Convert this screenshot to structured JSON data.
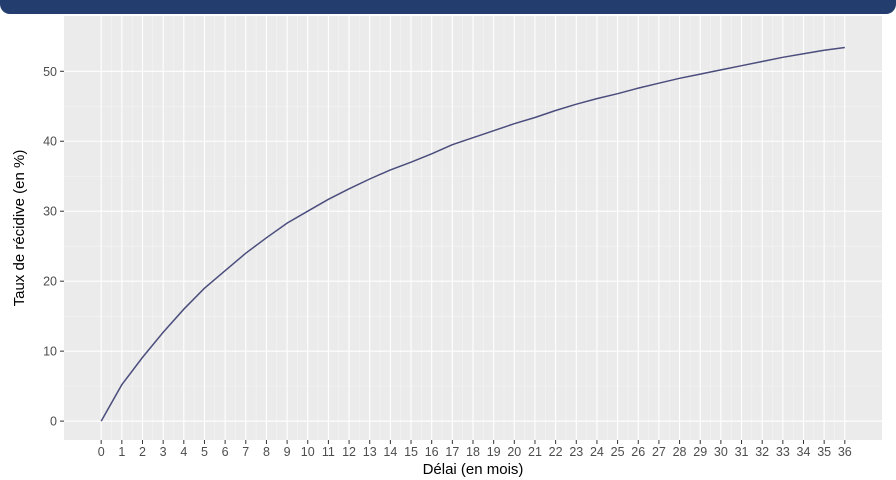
{
  "colors": {
    "panel_bg": "#ebebeb",
    "grid_major": "#ffffff",
    "grid_minor": "#f5f5f5",
    "line": "#4b4d7d",
    "tick_text": "#4d4d4d",
    "top_bar": "#223d6e"
  },
  "chart_data": {
    "type": "line",
    "xlabel": "Délai (en mois)",
    "ylabel": "Taux de récidive (en %)",
    "xlim": [
      -1.8,
      37.8
    ],
    "ylim": [
      -2.7,
      57.9
    ],
    "x_ticks": [
      0,
      1,
      2,
      3,
      4,
      5,
      6,
      7,
      8,
      9,
      10,
      11,
      12,
      13,
      14,
      15,
      16,
      17,
      18,
      19,
      20,
      21,
      22,
      23,
      24,
      25,
      26,
      27,
      28,
      29,
      30,
      31,
      32,
      33,
      34,
      35,
      36
    ],
    "y_ticks": [
      0,
      10,
      20,
      30,
      40,
      50
    ],
    "grid": true,
    "x": [
      0,
      1,
      2,
      3,
      4,
      5,
      6,
      7,
      8,
      9,
      10,
      11,
      12,
      13,
      14,
      15,
      16,
      17,
      18,
      19,
      20,
      21,
      22,
      23,
      24,
      25,
      26,
      27,
      28,
      29,
      30,
      31,
      32,
      33,
      34,
      35,
      36
    ],
    "values": [
      0,
      5.2,
      9.1,
      12.7,
      16.0,
      19.0,
      21.5,
      24.0,
      26.2,
      28.3,
      30.0,
      31.7,
      33.2,
      34.6,
      35.9,
      37.0,
      38.2,
      39.5,
      40.5,
      41.5,
      42.5,
      43.4,
      44.4,
      45.3,
      46.1,
      46.8,
      47.6,
      48.3,
      49.0,
      49.6,
      50.2,
      50.8,
      51.4,
      52.0,
      52.5,
      53.0,
      53.4
    ]
  }
}
